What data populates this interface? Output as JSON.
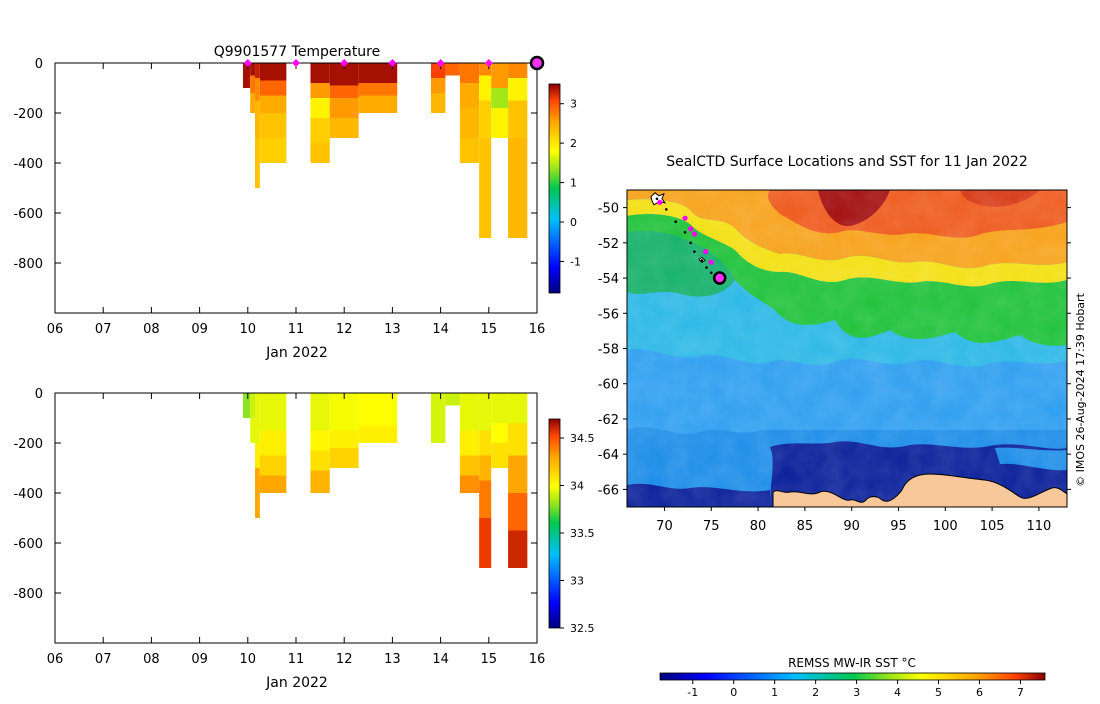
{
  "figure": {
    "title_top": "Q9901577  Temperature",
    "map_title": "SealCTD Surface Locations and SST for 11 Jan 2022",
    "credit": "© IMOS 26-Aug-2024 17:39 Hobart",
    "map_cbar_label": "REMSS MW-IR SST °C"
  },
  "chart_data": [
    {
      "type": "heatmap",
      "name": "temperature-section",
      "title": "Q9901577  Temperature",
      "xlabel": "Jan 2022",
      "ylabel": "",
      "xlim": [
        6,
        16
      ],
      "ylim": [
        -1000,
        0
      ],
      "x_ticks": [
        "06",
        "07",
        "08",
        "09",
        "10",
        "11",
        "12",
        "13",
        "14",
        "15",
        "16"
      ],
      "y_ticks": [
        "0",
        "-200",
        "-400",
        "-600",
        "-800"
      ],
      "y_tick_values": [
        0,
        -200,
        -400,
        -600,
        -800
      ],
      "colorbar": {
        "min": -1.8,
        "max": 3.5,
        "ticks": [
          "3",
          "2",
          "1",
          "0",
          "-1"
        ],
        "tick_values": [
          3,
          2,
          1,
          0,
          -1
        ]
      },
      "surface_markers_day": [
        10,
        11,
        12,
        13,
        14,
        15
      ],
      "current_marker_day": 16,
      "profiles": [
        {
          "x0": 9.9,
          "x1": 10.05,
          "depth": 100,
          "layers": [
            [
              0,
              100,
              3.4
            ]
          ]
        },
        {
          "x0": 10.05,
          "x1": 10.15,
          "depth": 200,
          "layers": [
            [
              0,
              50,
              3.4
            ],
            [
              50,
              120,
              2.8
            ],
            [
              120,
              200,
              2.5
            ]
          ]
        },
        {
          "x0": 10.15,
          "x1": 10.25,
          "depth": 500,
          "layers": [
            [
              0,
              60,
              3.3
            ],
            [
              60,
              150,
              2.7
            ],
            [
              150,
              300,
              2.4
            ],
            [
              300,
              500,
              2.3
            ]
          ]
        },
        {
          "x0": 10.25,
          "x1": 10.8,
          "depth": 400,
          "layers": [
            [
              0,
              70,
              3.4
            ],
            [
              70,
              130,
              2.9
            ],
            [
              130,
              200,
              2.5
            ],
            [
              200,
              300,
              2.3
            ],
            [
              300,
              400,
              2.2
            ]
          ]
        },
        {
          "x0": 11.3,
          "x1": 11.7,
          "depth": 400,
          "layers": [
            [
              0,
              80,
              3.4
            ],
            [
              80,
              140,
              2.6
            ],
            [
              140,
              220,
              1.9
            ],
            [
              220,
              320,
              2.2
            ],
            [
              320,
              400,
              2.3
            ]
          ]
        },
        {
          "x0": 11.7,
          "x1": 12.3,
          "depth": 300,
          "layers": [
            [
              0,
              90,
              3.4
            ],
            [
              90,
              140,
              2.9
            ],
            [
              140,
              220,
              2.6
            ],
            [
              220,
              300,
              2.4
            ]
          ]
        },
        {
          "x0": 12.3,
          "x1": 13.1,
          "depth": 200,
          "layers": [
            [
              0,
              80,
              3.4
            ],
            [
              80,
              130,
              2.8
            ],
            [
              130,
              200,
              2.5
            ]
          ]
        },
        {
          "x0": 13.8,
          "x1": 14.1,
          "depth": 200,
          "layers": [
            [
              0,
              60,
              3.1
            ],
            [
              60,
              120,
              2.6
            ],
            [
              120,
              200,
              2.4
            ]
          ]
        },
        {
          "x0": 14.1,
          "x1": 14.4,
          "depth": 50,
          "layers": [
            [
              0,
              50,
              2.9
            ]
          ]
        },
        {
          "x0": 14.4,
          "x1": 14.8,
          "depth": 400,
          "layers": [
            [
              0,
              80,
              2.8
            ],
            [
              80,
              180,
              2.5
            ],
            [
              180,
              300,
              2.4
            ],
            [
              300,
              400,
              2.3
            ]
          ]
        },
        {
          "x0": 14.8,
          "x1": 15.05,
          "depth": 700,
          "layers": [
            [
              0,
              50,
              2.7
            ],
            [
              50,
              150,
              1.9
            ],
            [
              150,
              300,
              2.2
            ],
            [
              300,
              700,
              2.3
            ]
          ]
        },
        {
          "x0": 15.05,
          "x1": 15.4,
          "depth": 300,
          "layers": [
            [
              0,
              100,
              2.6
            ],
            [
              100,
              180,
              1.4
            ],
            [
              180,
              300,
              1.9
            ]
          ]
        },
        {
          "x0": 15.4,
          "x1": 15.8,
          "depth": 700,
          "layers": [
            [
              0,
              60,
              2.7
            ],
            [
              60,
              150,
              1.9
            ],
            [
              150,
              300,
              2.3
            ],
            [
              300,
              700,
              2.4
            ]
          ]
        }
      ]
    },
    {
      "type": "heatmap",
      "name": "salinity-section",
      "title": "",
      "xlabel": "Jan 2022",
      "ylabel": "",
      "xlim": [
        6,
        16
      ],
      "ylim": [
        -1000,
        0
      ],
      "x_ticks": [
        "06",
        "07",
        "08",
        "09",
        "10",
        "11",
        "12",
        "13",
        "14",
        "15",
        "16"
      ],
      "y_ticks": [
        "0",
        "-200",
        "-400",
        "-600",
        "-800"
      ],
      "y_tick_values": [
        0,
        -200,
        -400,
        -600,
        -800
      ],
      "colorbar": {
        "min": 32.5,
        "max": 34.7,
        "ticks": [
          "34.5",
          "34",
          "33.5",
          "33",
          "32.5"
        ],
        "tick_values": [
          34.5,
          34,
          33.5,
          33,
          32.5
        ]
      },
      "profiles": [
        {
          "x0": 9.9,
          "x1": 10.05,
          "depth": 100,
          "layers": [
            [
              0,
              100,
              33.8
            ]
          ]
        },
        {
          "x0": 10.05,
          "x1": 10.15,
          "depth": 200,
          "layers": [
            [
              0,
              100,
              33.9
            ],
            [
              100,
              200,
              33.95
            ]
          ]
        },
        {
          "x0": 10.15,
          "x1": 10.25,
          "depth": 500,
          "layers": [
            [
              0,
              200,
              33.95
            ],
            [
              200,
              300,
              34.05
            ],
            [
              300,
              500,
              34.3
            ]
          ]
        },
        {
          "x0": 10.25,
          "x1": 10.8,
          "depth": 400,
          "layers": [
            [
              0,
              150,
              33.95
            ],
            [
              150,
              250,
              34.05
            ],
            [
              250,
              330,
              34.15
            ],
            [
              330,
              400,
              34.3
            ]
          ]
        },
        {
          "x0": 11.3,
          "x1": 11.7,
          "depth": 400,
          "layers": [
            [
              0,
              150,
              33.95
            ],
            [
              150,
              230,
              34.02
            ],
            [
              230,
              310,
              34.1
            ],
            [
              310,
              400,
              34.25
            ]
          ]
        },
        {
          "x0": 11.7,
          "x1": 12.3,
          "depth": 300,
          "layers": [
            [
              0,
              150,
              33.98
            ],
            [
              150,
              220,
              34.05
            ],
            [
              220,
              300,
              34.15
            ]
          ]
        },
        {
          "x0": 12.3,
          "x1": 13.1,
          "depth": 200,
          "layers": [
            [
              0,
              130,
              34.0
            ],
            [
              130,
              200,
              34.05
            ]
          ]
        },
        {
          "x0": 13.8,
          "x1": 14.1,
          "depth": 200,
          "layers": [
            [
              0,
              200,
              33.92
            ]
          ]
        },
        {
          "x0": 14.1,
          "x1": 14.4,
          "depth": 50,
          "layers": [
            [
              0,
              50,
              33.9
            ]
          ]
        },
        {
          "x0": 14.4,
          "x1": 14.8,
          "depth": 400,
          "layers": [
            [
              0,
              150,
              33.95
            ],
            [
              150,
              250,
              34.05
            ],
            [
              250,
              330,
              34.2
            ],
            [
              330,
              400,
              34.35
            ]
          ]
        },
        {
          "x0": 14.8,
          "x1": 15.05,
          "depth": 700,
          "layers": [
            [
              0,
              150,
              33.95
            ],
            [
              150,
              250,
              34.1
            ],
            [
              250,
              350,
              34.25
            ],
            [
              350,
              500,
              34.4
            ],
            [
              500,
              700,
              34.55
            ]
          ]
        },
        {
          "x0": 15.05,
          "x1": 15.4,
          "depth": 300,
          "layers": [
            [
              0,
              120,
              33.95
            ],
            [
              120,
              200,
              34.0
            ],
            [
              200,
              300,
              34.1
            ]
          ]
        },
        {
          "x0": 15.4,
          "x1": 15.8,
          "depth": 700,
          "layers": [
            [
              0,
              120,
              33.95
            ],
            [
              120,
              250,
              34.1
            ],
            [
              250,
              400,
              34.3
            ],
            [
              400,
              550,
              34.45
            ],
            [
              550,
              700,
              34.6
            ]
          ]
        }
      ]
    },
    {
      "type": "heatmap",
      "name": "sst-map",
      "title": "SealCTD Surface Locations and SST for 11 Jan 2022",
      "xlabel": "",
      "ylabel": "",
      "xlim": [
        66,
        113
      ],
      "ylim": [
        -67,
        -49
      ],
      "x_ticks": [
        "70",
        "75",
        "80",
        "85",
        "90",
        "95",
        "100",
        "105",
        "110"
      ],
      "x_tick_values": [
        70,
        75,
        80,
        85,
        90,
        95,
        100,
        105,
        110
      ],
      "y_ticks": [
        "-50",
        "-52",
        "-54",
        "-56",
        "-58",
        "-60",
        "-62",
        "-64",
        "-66"
      ],
      "y_tick_values": [
        -50,
        -52,
        -54,
        -56,
        -58,
        -60,
        -62,
        -64,
        -66
      ],
      "colorbar": {
        "label": "REMSS MW-IR SST °C",
        "min": -1.8,
        "max": 7.6,
        "ticks": [
          "-1",
          "0",
          "1",
          "2",
          "3",
          "4",
          "5",
          "6",
          "7"
        ],
        "tick_values": [
          -1,
          0,
          1,
          2,
          3,
          4,
          5,
          6,
          7
        ]
      },
      "track": [
        {
          "lon": 69.2,
          "lat": -49.5
        },
        {
          "lon": 70.2,
          "lat": -50.1
        },
        {
          "lon": 71.2,
          "lat": -50.8
        },
        {
          "lon": 72.2,
          "lat": -51.4
        },
        {
          "lon": 72.8,
          "lat": -52.0
        },
        {
          "lon": 73.2,
          "lat": -52.5
        },
        {
          "lon": 74.0,
          "lat": -53.0
        },
        {
          "lon": 74.5,
          "lat": -53.4
        },
        {
          "lon": 75.0,
          "lat": -53.7
        },
        {
          "lon": 75.6,
          "lat": -54.0
        }
      ],
      "sealctd_surface_locations": [
        {
          "lon": 69.5,
          "lat": -49.7
        },
        {
          "lon": 72.2,
          "lat": -50.6
        },
        {
          "lon": 72.8,
          "lat": -51.2
        },
        {
          "lon": 73.2,
          "lat": -51.5
        },
        {
          "lon": 74.4,
          "lat": -52.5
        },
        {
          "lon": 75.0,
          "lat": -53.1
        }
      ],
      "current_location": {
        "lon": 75.9,
        "lat": -54.0
      }
    }
  ]
}
